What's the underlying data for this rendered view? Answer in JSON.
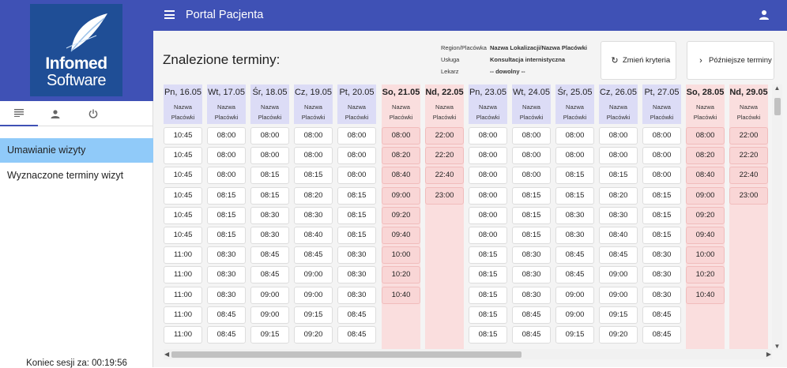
{
  "app": {
    "title": "Portal Pacjenta"
  },
  "logo": {
    "line1": "Infomed",
    "line2": "Software"
  },
  "sidebar": {
    "tabs": [
      {
        "icon": "list-icon"
      },
      {
        "icon": "person-icon"
      },
      {
        "icon": "power-icon"
      }
    ],
    "items": [
      {
        "label": "Umawianie wizyty",
        "active": true
      },
      {
        "label": "Wyznaczone terminy wizyt",
        "active": false
      }
    ],
    "session_text": "Koniec sesji za: 00:19:56"
  },
  "main": {
    "title": "Znalezione terminy:",
    "criteria": [
      {
        "label": "Region/Placówka",
        "value": "Nazwa Lokalizacji/Nazwa Placówki"
      },
      {
        "label": "Usługa",
        "value": "Konsultacja internistyczna"
      },
      {
        "label": "Lekarz",
        "value": "-- dowolny --"
      }
    ],
    "buttons": {
      "change": {
        "label": "Zmień kryteria",
        "icon": "refresh-icon"
      },
      "later": {
        "label": "Późniejsze terminy",
        "icon": "chevron-right-icon"
      }
    }
  },
  "calendar": {
    "place_line1": "Nazwa",
    "place_line2": "Placówki",
    "days": [
      {
        "date": "Pn, 16.05",
        "weekend": false,
        "slots": [
          "10:45",
          "10:45",
          "10:45",
          "10:45",
          "10:45",
          "10:45",
          "11:00",
          "11:00",
          "11:00",
          "11:00",
          "11:00"
        ]
      },
      {
        "date": "Wt, 17.05",
        "weekend": false,
        "slots": [
          "08:00",
          "08:00",
          "08:00",
          "08:15",
          "08:15",
          "08:15",
          "08:30",
          "08:30",
          "08:30",
          "08:45",
          "08:45"
        ]
      },
      {
        "date": "Śr, 18.05",
        "weekend": false,
        "slots": [
          "08:00",
          "08:00",
          "08:15",
          "08:15",
          "08:30",
          "08:30",
          "08:45",
          "08:45",
          "09:00",
          "09:00",
          "09:15"
        ]
      },
      {
        "date": "Cz, 19.05",
        "weekend": false,
        "slots": [
          "08:00",
          "08:00",
          "08:15",
          "08:20",
          "08:30",
          "08:40",
          "08:45",
          "09:00",
          "09:00",
          "09:15",
          "09:20"
        ]
      },
      {
        "date": "Pt, 20.05",
        "weekend": false,
        "slots": [
          "08:00",
          "08:00",
          "08:00",
          "08:15",
          "08:15",
          "08:15",
          "08:30",
          "08:30",
          "08:30",
          "08:45",
          "08:45"
        ]
      },
      {
        "date": "So, 21.05",
        "weekend": true,
        "slots": [
          "08:00",
          "08:20",
          "08:40",
          "09:00",
          "09:20",
          "09:40",
          "10:00",
          "10:20",
          "10:40"
        ]
      },
      {
        "date": "Nd, 22.05",
        "weekend": true,
        "slots": [
          "22:00",
          "22:20",
          "22:40",
          "23:00"
        ]
      },
      {
        "date": "Pn, 23.05",
        "weekend": false,
        "slots": [
          "08:00",
          "08:00",
          "08:00",
          "08:00",
          "08:00",
          "08:00",
          "08:15",
          "08:15",
          "08:15",
          "08:15",
          "08:15"
        ]
      },
      {
        "date": "Wt, 24.05",
        "weekend": false,
        "slots": [
          "08:00",
          "08:00",
          "08:00",
          "08:15",
          "08:15",
          "08:15",
          "08:30",
          "08:30",
          "08:30",
          "08:45",
          "08:45"
        ]
      },
      {
        "date": "Śr, 25.05",
        "weekend": false,
        "slots": [
          "08:00",
          "08:00",
          "08:15",
          "08:15",
          "08:30",
          "08:30",
          "08:45",
          "08:45",
          "09:00",
          "09:00",
          "09:15"
        ]
      },
      {
        "date": "Cz, 26.05",
        "weekend": false,
        "slots": [
          "08:00",
          "08:00",
          "08:15",
          "08:20",
          "08:30",
          "08:40",
          "08:45",
          "09:00",
          "09:00",
          "09:15",
          "09:20"
        ]
      },
      {
        "date": "Pt, 27.05",
        "weekend": false,
        "slots": [
          "08:00",
          "08:00",
          "08:00",
          "08:15",
          "08:15",
          "08:15",
          "08:30",
          "08:30",
          "08:30",
          "08:45",
          "08:45"
        ]
      },
      {
        "date": "So, 28.05",
        "weekend": true,
        "slots": [
          "08:00",
          "08:20",
          "08:40",
          "09:00",
          "09:20",
          "09:40",
          "10:00",
          "10:20",
          "10:40"
        ]
      },
      {
        "date": "Nd, 29.05",
        "weekend": true,
        "slots": [
          "22:00",
          "22:20",
          "22:40",
          "23:00"
        ]
      }
    ]
  }
}
